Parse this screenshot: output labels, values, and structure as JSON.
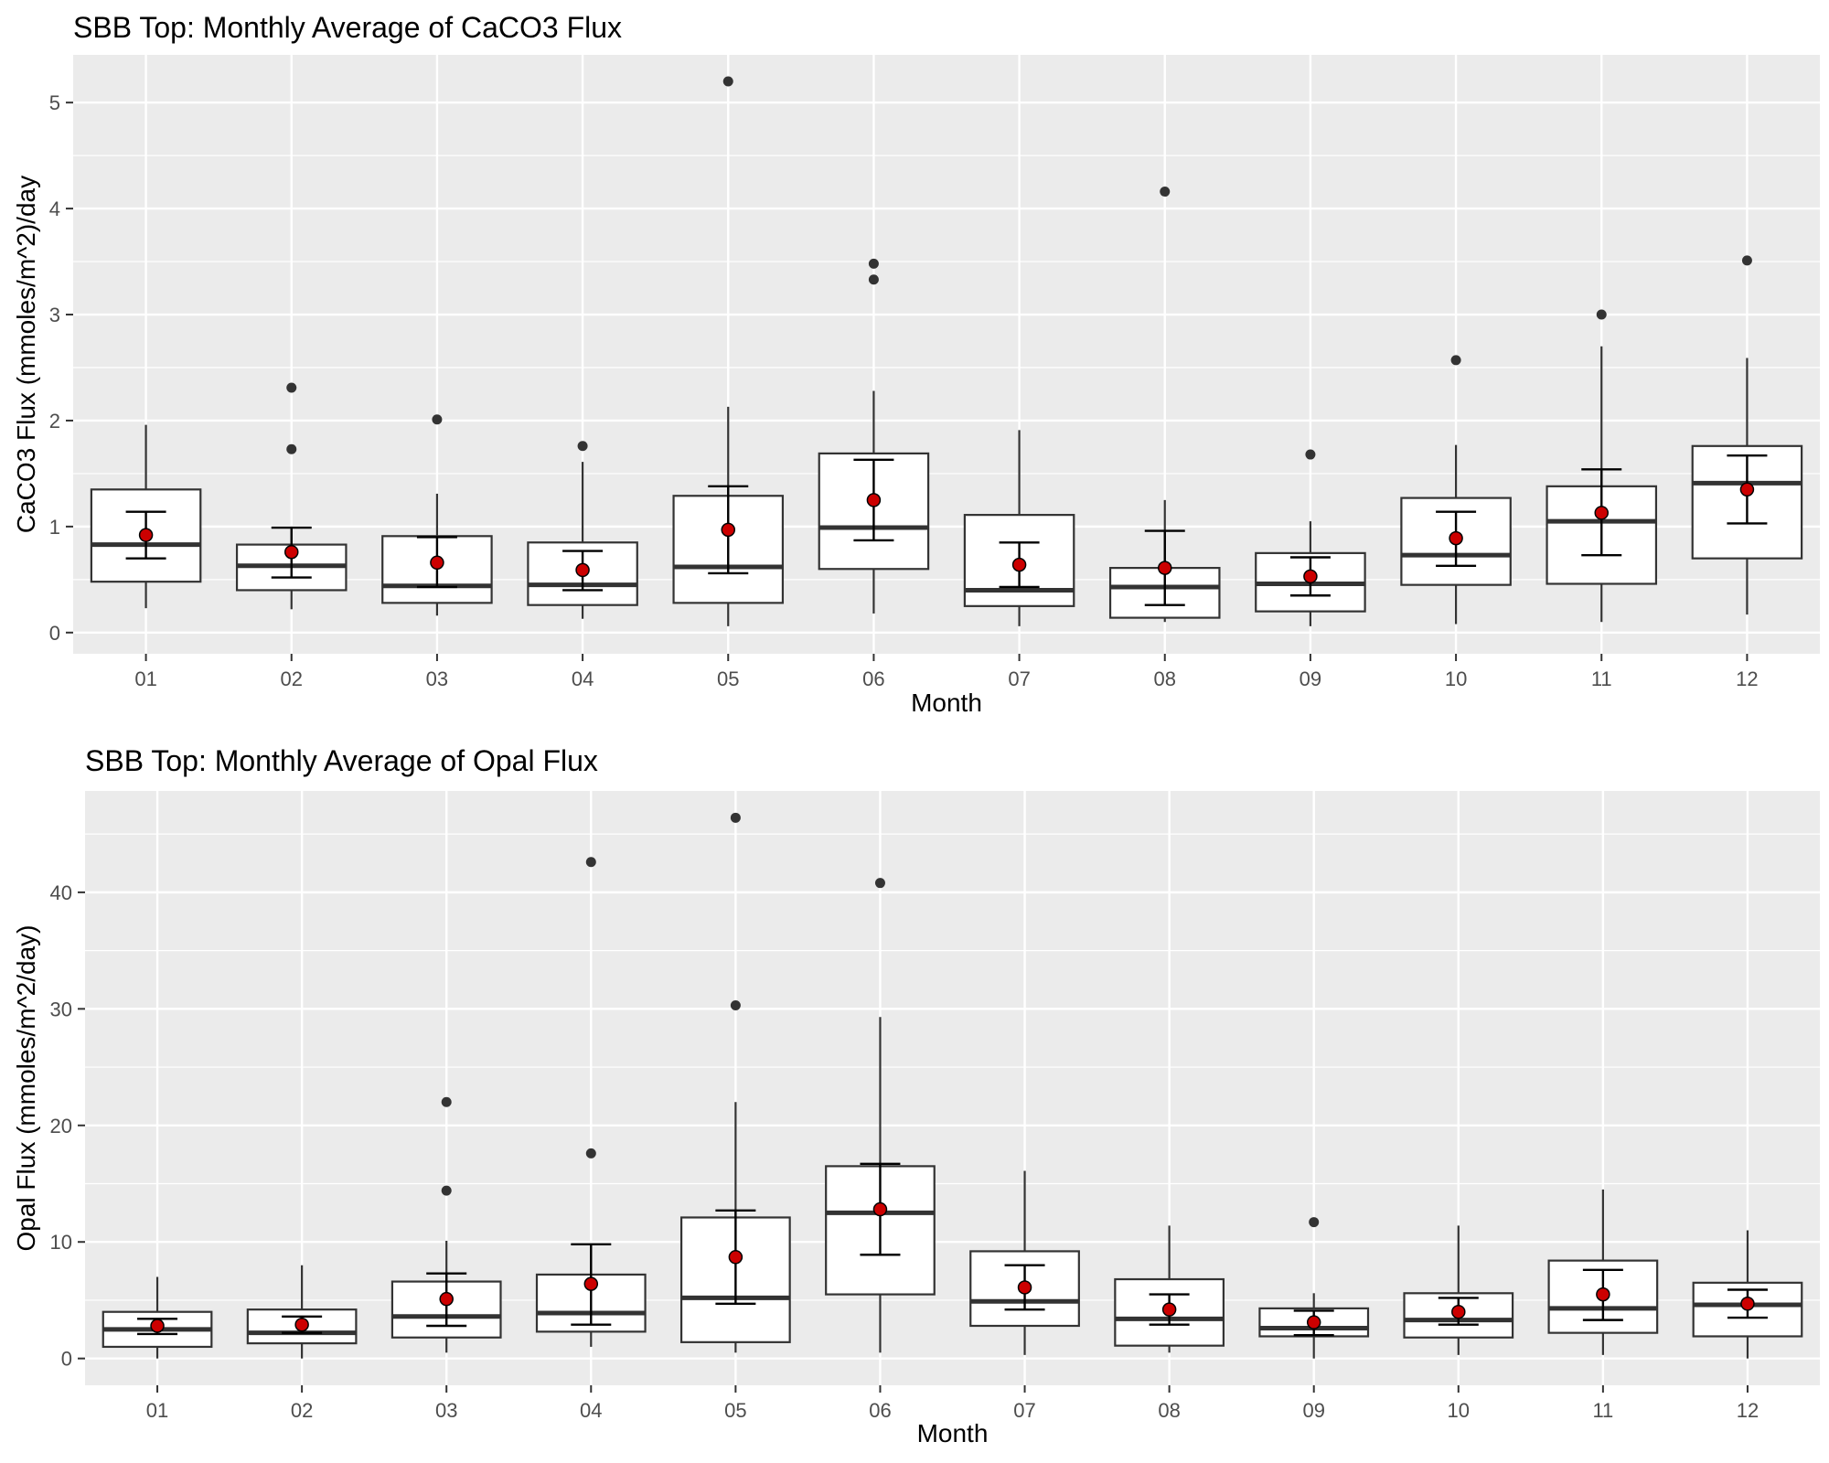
{
  "chart_data": [
    {
      "type": "box",
      "title": "SBB Top: Monthly Average of CaCO3 Flux",
      "xlabel": "Month",
      "ylabel": "CaCO3 Flux (mmoles/m^2)/day",
      "categories": [
        "01",
        "02",
        "03",
        "04",
        "05",
        "06",
        "07",
        "08",
        "09",
        "10",
        "11",
        "12"
      ],
      "ylim": [
        -0.2,
        5.45
      ],
      "yticks": [
        0,
        1,
        2,
        3,
        4,
        5
      ],
      "grid": true,
      "boxes": [
        {
          "q1": 0.48,
          "median": 0.83,
          "q3": 1.35,
          "whisker_low": 0.23,
          "whisker_high": 1.96,
          "outliers": []
        },
        {
          "q1": 0.4,
          "median": 0.63,
          "q3": 0.83,
          "whisker_low": 0.22,
          "whisker_high": 0.99,
          "outliers": [
            1.73,
            2.31
          ]
        },
        {
          "q1": 0.28,
          "median": 0.44,
          "q3": 0.91,
          "whisker_low": 0.16,
          "whisker_high": 1.31,
          "outliers": [
            2.01
          ]
        },
        {
          "q1": 0.26,
          "median": 0.45,
          "q3": 0.85,
          "whisker_low": 0.13,
          "whisker_high": 1.61,
          "outliers": [
            1.76
          ]
        },
        {
          "q1": 0.28,
          "median": 0.62,
          "q3": 1.29,
          "whisker_low": 0.06,
          "whisker_high": 2.13,
          "outliers": [
            5.2
          ]
        },
        {
          "q1": 0.6,
          "median": 0.99,
          "q3": 1.69,
          "whisker_low": 0.18,
          "whisker_high": 2.28,
          "outliers": [
            3.33,
            3.48
          ]
        },
        {
          "q1": 0.25,
          "median": 0.4,
          "q3": 1.11,
          "whisker_low": 0.06,
          "whisker_high": 1.91,
          "outliers": []
        },
        {
          "q1": 0.14,
          "median": 0.43,
          "q3": 0.61,
          "whisker_low": 0.1,
          "whisker_high": 1.25,
          "outliers": [
            4.16
          ]
        },
        {
          "q1": 0.2,
          "median": 0.46,
          "q3": 0.75,
          "whisker_low": 0.06,
          "whisker_high": 1.05,
          "outliers": [
            1.68
          ]
        },
        {
          "q1": 0.45,
          "median": 0.73,
          "q3": 1.27,
          "whisker_low": 0.08,
          "whisker_high": 1.77,
          "outliers": [
            2.57
          ]
        },
        {
          "q1": 0.46,
          "median": 1.05,
          "q3": 1.38,
          "whisker_low": 0.1,
          "whisker_high": 2.7,
          "outliers": [
            3.0
          ]
        },
        {
          "q1": 0.7,
          "median": 1.41,
          "q3": 1.76,
          "whisker_low": 0.17,
          "whisker_high": 2.59,
          "outliers": [
            3.51
          ]
        }
      ],
      "means": [
        0.92,
        0.76,
        0.66,
        0.59,
        0.97,
        1.25,
        0.64,
        0.61,
        0.53,
        0.89,
        1.13,
        1.35
      ],
      "error_bars": [
        [
          0.7,
          1.14
        ],
        [
          0.52,
          0.99
        ],
        [
          0.43,
          0.9
        ],
        [
          0.4,
          0.77
        ],
        [
          0.56,
          1.38
        ],
        [
          0.87,
          1.63
        ],
        [
          0.43,
          0.85
        ],
        [
          0.26,
          0.96
        ],
        [
          0.35,
          0.71
        ],
        [
          0.63,
          1.14
        ],
        [
          0.73,
          1.54
        ],
        [
          1.03,
          1.67
        ]
      ],
      "colors": {
        "mean_point": "#cc0000",
        "panel": "#ebebeb",
        "grid": "#ffffff",
        "outlier": "#333333"
      }
    },
    {
      "type": "box",
      "title": "SBB Top: Monthly Average of Opal Flux",
      "xlabel": "Month",
      "ylabel": "Opal Flux (mmoles/m^2/day)",
      "categories": [
        "01",
        "02",
        "03",
        "04",
        "05",
        "06",
        "07",
        "08",
        "09",
        "10",
        "11",
        "12"
      ],
      "ylim": [
        -2.3,
        48.7
      ],
      "yticks": [
        0,
        10,
        20,
        30,
        40
      ],
      "grid": true,
      "boxes": [
        {
          "q1": 1.0,
          "median": 2.5,
          "q3": 4.0,
          "whisker_low": 0.0,
          "whisker_high": 7.0,
          "outliers": []
        },
        {
          "q1": 1.3,
          "median": 2.2,
          "q3": 4.2,
          "whisker_low": 0.0,
          "whisker_high": 8.0,
          "outliers": []
        },
        {
          "q1": 1.8,
          "median": 3.6,
          "q3": 6.6,
          "whisker_low": 0.5,
          "whisker_high": 10.1,
          "outliers": [
            14.4,
            22.0
          ]
        },
        {
          "q1": 2.3,
          "median": 3.9,
          "q3": 7.2,
          "whisker_low": 1.0,
          "whisker_high": 9.8,
          "outliers": [
            17.6,
            42.6
          ]
        },
        {
          "q1": 1.4,
          "median": 5.2,
          "q3": 12.1,
          "whisker_low": 0.5,
          "whisker_high": 22.0,
          "outliers": [
            30.3,
            46.4
          ]
        },
        {
          "q1": 5.5,
          "median": 12.5,
          "q3": 16.5,
          "whisker_low": 0.5,
          "whisker_high": 29.3,
          "outliers": [
            40.8
          ]
        },
        {
          "q1": 2.8,
          "median": 4.9,
          "q3": 9.2,
          "whisker_low": 0.3,
          "whisker_high": 16.1,
          "outliers": []
        },
        {
          "q1": 1.1,
          "median": 3.4,
          "q3": 6.8,
          "whisker_low": 0.5,
          "whisker_high": 11.4,
          "outliers": []
        },
        {
          "q1": 1.9,
          "median": 2.6,
          "q3": 4.3,
          "whisker_low": 0.0,
          "whisker_high": 5.6,
          "outliers": [
            11.7
          ]
        },
        {
          "q1": 1.8,
          "median": 3.3,
          "q3": 5.6,
          "whisker_low": 0.3,
          "whisker_high": 11.4,
          "outliers": []
        },
        {
          "q1": 2.2,
          "median": 4.3,
          "q3": 8.4,
          "whisker_low": 0.3,
          "whisker_high": 14.5,
          "outliers": []
        },
        {
          "q1": 1.9,
          "median": 4.6,
          "q3": 6.5,
          "whisker_low": 0.0,
          "whisker_high": 11.0,
          "outliers": []
        }
      ],
      "means": [
        2.8,
        2.9,
        5.1,
        6.4,
        8.7,
        12.8,
        6.1,
        4.2,
        3.1,
        4.0,
        5.5,
        4.7
      ],
      "error_bars": [
        [
          2.1,
          3.4
        ],
        [
          2.2,
          3.6
        ],
        [
          2.8,
          7.3
        ],
        [
          2.9,
          9.8
        ],
        [
          4.7,
          12.7
        ],
        [
          8.9,
          16.7
        ],
        [
          4.2,
          8.0
        ],
        [
          2.9,
          5.5
        ],
        [
          2.0,
          4.1
        ],
        [
          2.9,
          5.2
        ],
        [
          3.3,
          7.6
        ],
        [
          3.5,
          5.9
        ]
      ],
      "colors": {
        "mean_point": "#cc0000",
        "panel": "#ebebeb",
        "grid": "#ffffff",
        "outlier": "#333333"
      }
    }
  ]
}
